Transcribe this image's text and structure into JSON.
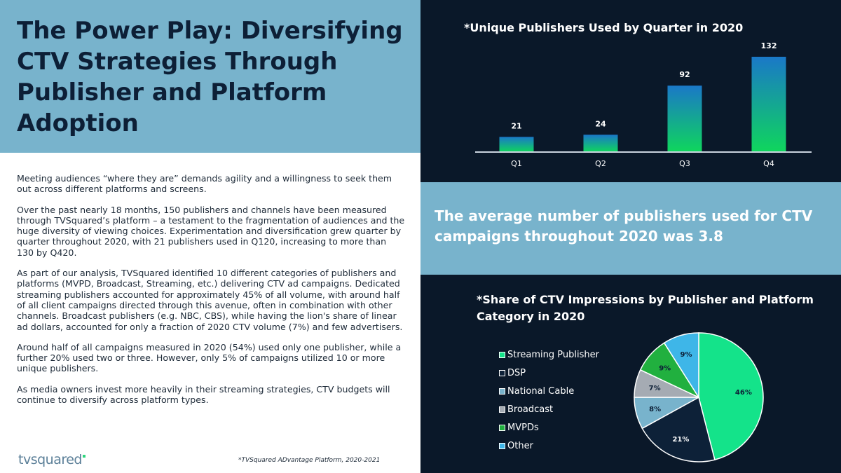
{
  "left": {
    "title": "The Power Play: Diversifying CTV Strategies Through Publisher and Platform Adoption",
    "paragraphs": [
      "Meeting audiences “where they are” demands agility and a willingness to seek them out across different platforms and screens.",
      "Over the past nearly 18 months, 150 publishers and channels have been measured through TVSquared’s platform – a testament to the fragmentation of audiences and the huge diversity of viewing choices. Experimentation and diversification grew quarter by quarter throughout 2020, with 21 publishers used in Q120, increasing to more than 130 by Q420.",
      "As part of our analysis, TVSquared identified 10 different categories of publishers and platforms (MVPD, Broadcast, Streaming, etc.) delivering CTV ad campaigns. Dedicated streaming publishers accounted for approximately 45% of all volume, with around half of all client campaigns directed through this avenue, often in combination with other channels. Broadcast publishers (e.g. NBC, CBS), while having the lion's share of linear ad dollars, accounted for only a fraction of 2020 CTV volume (7%) and few advertisers.",
      "Around half of all campaigns measured in 2020 (54%) used only one publisher, while a further 20% used two or three. However, only 5% of campaigns utilized 10 or more unique publishers.",
      "As media owners invest more heavily in their streaming strategies, CTV budgets will continue to diversify across platform types."
    ],
    "logo_text": "tvsquared",
    "source": "*TVSquared ADvantage Platform, 2020-2021"
  },
  "stat": {
    "text": "The average number of publishers used for CTV campaigns throughout 2020 was 3.8"
  },
  "colors": {
    "header_blue": "#78b3cc",
    "dark_navy": "#0a1829",
    "bar_top": "#1a78c8",
    "bar_bottom": "#0fd65c"
  },
  "chart_data": [
    {
      "type": "bar",
      "title": "*Unique Publishers Used by Quarter in 2020",
      "categories": [
        "Q1",
        "Q2",
        "Q3",
        "Q4"
      ],
      "values": [
        21,
        24,
        92,
        132
      ],
      "data_labels": [
        "21",
        "24",
        "92",
        "132"
      ],
      "ylim": [
        0,
        132
      ],
      "grid": false,
      "xlabel": "",
      "ylabel": ""
    },
    {
      "type": "pie",
      "title": "*Share of CTV Impressions by Publisher and Platform Category in 2020",
      "legend_position": "left",
      "slices": [
        {
          "label": "Streaming Publisher",
          "value": 46,
          "text": "46%",
          "color": "#14e38a"
        },
        {
          "label": "DSP",
          "value": 21,
          "text": "21%",
          "color": "#0d2138"
        },
        {
          "label": "National Cable",
          "value": 8,
          "text": "8%",
          "color": "#78b3cc"
        },
        {
          "label": "Broadcast",
          "value": 7,
          "text": "7%",
          "color": "#a5abb3"
        },
        {
          "label": "MVPDs",
          "value": 9,
          "text": "9%",
          "color": "#21b03f"
        },
        {
          "label": "Other",
          "value": 9,
          "text": "9%",
          "color": "#3eb6e8"
        }
      ]
    }
  ]
}
